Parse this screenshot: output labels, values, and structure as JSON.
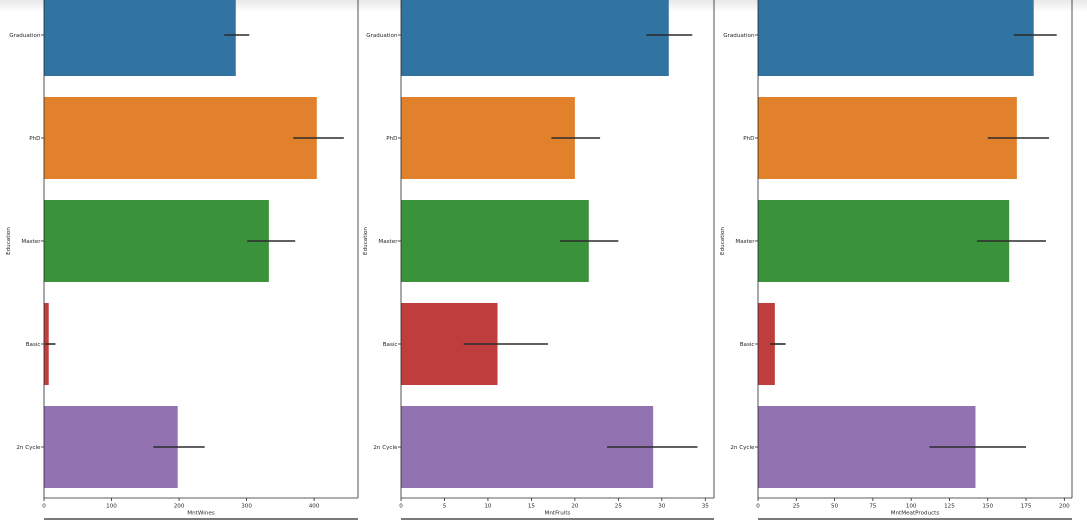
{
  "figure": {
    "colors": [
      "#3274a1",
      "#e1812c",
      "#3a923a",
      "#c03d3e",
      "#9372b2"
    ],
    "error_color": "#2b2b2b"
  },
  "chart_data": [
    {
      "type": "bar",
      "orientation": "horizontal",
      "categories": [
        "Graduation",
        "PhD",
        "Master",
        "Basic",
        "2n Cycle"
      ],
      "values": [
        284,
        404,
        333,
        7,
        198
      ],
      "error_low": [
        267,
        369,
        301,
        2,
        162
      ],
      "error_high": [
        304,
        444,
        372,
        17,
        238
      ],
      "xlabel": "MntWines",
      "ylabel": "Education",
      "xlim": [
        0,
        465
      ],
      "xticks": [
        0,
        100,
        200,
        300,
        400
      ],
      "grid": false
    },
    {
      "type": "bar",
      "orientation": "horizontal",
      "categories": [
        "Graduation",
        "PhD",
        "Master",
        "Basic",
        "2n Cycle"
      ],
      "values": [
        30.8,
        20.0,
        21.6,
        11.1,
        29.0
      ],
      "error_low": [
        28.2,
        17.3,
        18.3,
        7.2,
        23.7
      ],
      "error_high": [
        33.5,
        22.9,
        25.0,
        16.9,
        34.1
      ],
      "xlabel": "MntFruits",
      "ylabel": "Education",
      "xlim": [
        0,
        36
      ],
      "xticks": [
        0,
        5,
        10,
        15,
        20,
        25,
        30,
        35
      ],
      "grid": false
    },
    {
      "type": "bar",
      "orientation": "horizontal",
      "categories": [
        "Graduation",
        "PhD",
        "Master",
        "Basic",
        "2n Cycle"
      ],
      "values": [
        180,
        169,
        164,
        11,
        142
      ],
      "error_low": [
        167,
        150,
        143,
        8,
        112
      ],
      "error_high": [
        195,
        190,
        188,
        18,
        175
      ],
      "xlabel": "MntMeatProducts",
      "ylabel": "Education",
      "xlim": [
        0,
        205
      ],
      "xticks": [
        0,
        25,
        50,
        75,
        100,
        125,
        150,
        175,
        200
      ],
      "grid": false
    }
  ]
}
